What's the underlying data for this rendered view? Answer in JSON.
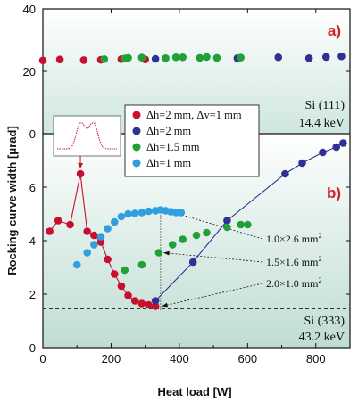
{
  "chart_data": {
    "type": "scatter",
    "xlabel": "Heat load [W]",
    "ylabel": "Rocking curve width [μrad]",
    "xlim": [
      0,
      900
    ],
    "x_ticks": [
      "0",
      "200",
      "400",
      "600",
      "800"
    ],
    "panels": [
      {
        "tag": "a)",
        "ylim": [
          0,
          40
        ],
        "y_ticks": [
          "0",
          "20",
          "40"
        ],
        "reflection": "Si (111)",
        "energy": "14.4 keV",
        "reference_line": 23,
        "series": [
          {
            "name": "Δh=2 mm, Δv=1 mm",
            "color": "#c8102e",
            "x": [
              0,
              50,
              120,
              170,
              230,
              300
            ],
            "y": [
              23.5,
              23.8,
              23.6,
              23.7,
              23.9,
              23.8
            ]
          },
          {
            "name": "Δh=2 mm",
            "color": "#2e3192",
            "x": [
              330,
              570,
              690,
              780,
              830,
              875
            ],
            "y": [
              24.0,
              24.2,
              24.5,
              24.2,
              24.6,
              24.8
            ]
          },
          {
            "name": "Δh=1.5 mm",
            "color": "#21a038",
            "x": [
              180,
              240,
              250,
              290,
              360,
              390,
              410,
              460,
              480,
              510,
              580
            ],
            "y": [
              23.9,
              24.1,
              24.3,
              24.4,
              24.2,
              24.5,
              24.5,
              24.3,
              24.6,
              24.3,
              24.4
            ]
          }
        ]
      },
      {
        "tag": "b)",
        "ylim": [
          0,
          8
        ],
        "y_ticks": [
          "0",
          "2",
          "4",
          "6"
        ],
        "reflection": "Si (333)",
        "energy": "43.2 keV",
        "reference_line": 1.45,
        "series": [
          {
            "name": "Δh=2 mm, Δv=1 mm",
            "color": "#c8102e",
            "x": [
              20,
              45,
              80,
              110,
              130,
              150,
              170,
              190,
              210,
              230,
              250,
              270,
              290,
              310,
              330
            ],
            "y": [
              4.35,
              4.75,
              4.6,
              6.5,
              4.35,
              4.2,
              3.95,
              3.3,
              2.75,
              2.3,
              1.95,
              1.75,
              1.65,
              1.6,
              1.55
            ],
            "connected": true,
            "highlight_index": 3
          },
          {
            "name": "Δh=2 mm",
            "color": "#2e3192",
            "x": [
              330,
              440,
              540,
              710,
              760,
              820,
              860,
              880
            ],
            "y": [
              1.75,
              3.2,
              4.75,
              6.5,
              6.9,
              7.3,
              7.5,
              7.65
            ],
            "connected": true
          },
          {
            "name": "Δh=1.5 mm",
            "color": "#21a038",
            "x": [
              240,
              290,
              340,
              380,
              410,
              450,
              480,
              540,
              580,
              600
            ],
            "y": [
              2.9,
              3.1,
              3.55,
              3.85,
              4.05,
              4.2,
              4.3,
              4.5,
              4.6,
              4.6
            ],
            "connected": false
          },
          {
            "name": "Δh=1 mm",
            "color": "#2f9fe0",
            "x": [
              100,
              130,
              150,
              170,
              190,
              210,
              230,
              250,
              270,
              290,
              310,
              330,
              345,
              360,
              375,
              390,
              405
            ],
            "y": [
              3.1,
              3.55,
              3.85,
              4.15,
              4.45,
              4.7,
              4.9,
              5.0,
              5.02,
              5.05,
              5.1,
              5.12,
              5.15,
              5.12,
              5.08,
              5.05,
              5.05
            ],
            "connected": false
          }
        ],
        "annotations": [
          {
            "label": "1.0×2.6 mm",
            "sup": "2",
            "x": 345,
            "y": 5.15
          },
          {
            "label": "1.5×1.6 mm",
            "sup": "2",
            "x": 340,
            "y": 3.55
          },
          {
            "label": "2.0×1.0 mm",
            "sup": "2",
            "x": 335,
            "y": 1.55
          }
        ]
      }
    ],
    "legend": {
      "placement": "center",
      "entries": [
        {
          "label": "Δh=2 mm, Δv=1 mm",
          "color": "#c8102e"
        },
        {
          "label": "Δh=2 mm",
          "color": "#2e3192"
        },
        {
          "label": "Δh=1.5 mm",
          "color": "#21a038"
        },
        {
          "label": "Δh=1 mm",
          "color": "#2f9fe0"
        }
      ]
    }
  }
}
